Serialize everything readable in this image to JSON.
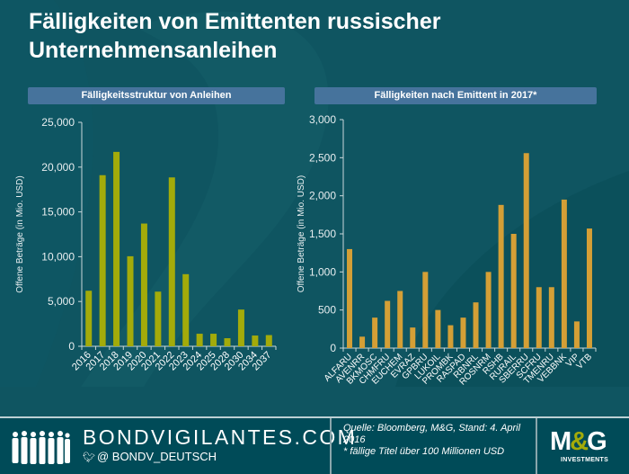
{
  "title": "Fälligkeiten von Emittenten russischer Unternehmensanleihen",
  "colors": {
    "background": "#0f5561",
    "panel_header": "#46739c",
    "left_bars": "#a3ab0a",
    "right_bars": "#d49f36",
    "axis": "#c9d8db",
    "text": "#ffffff"
  },
  "chart_data": [
    {
      "type": "bar",
      "title": "Fälligkeitsstruktur  von Anleihen",
      "xlabel": "",
      "ylabel": "Offene Beträge (in Mio. USD)",
      "ylim": [
        0,
        25000
      ],
      "yticks": [
        0,
        5000,
        10000,
        15000,
        20000,
        25000
      ],
      "ytick_labels": [
        "0",
        "5,000",
        "10,000",
        "15,000",
        "20,000",
        "25,000"
      ],
      "categories": [
        "2016",
        "2017",
        "2018",
        "2019",
        "2020",
        "2021",
        "2022",
        "2023",
        "2024",
        "2025",
        "2028",
        "2030",
        "2034",
        "2037"
      ],
      "values": [
        6200,
        19100,
        21700,
        10050,
        13700,
        6100,
        18850,
        8050,
        1400,
        1400,
        900,
        4100,
        1200,
        1250
      ],
      "grid": false,
      "legend": "none"
    },
    {
      "type": "bar",
      "title": "Fälligkeiten nach Emittent in 2017*",
      "xlabel": "",
      "ylabel": "Offene Beträge (in Mio. USD)",
      "ylim": [
        0,
        3000
      ],
      "yticks": [
        0,
        500,
        1000,
        1500,
        2000,
        2500,
        3000
      ],
      "ytick_labels": [
        "0",
        "500",
        "1,000",
        "1,500",
        "2,000",
        "2,500",
        "3,000"
      ],
      "categories": [
        "ALFARU",
        "AVENRR",
        "BKMOSC",
        "CHMFRU",
        "EUCHEM",
        "EVRAZ",
        "GPBRU",
        "LUKOIL",
        "PROMBK",
        "RASPAD",
        "RBNRL",
        "ROSNRM",
        "RSHB",
        "RURAIL",
        "SBERRU",
        "SCFRU",
        "TMENRU",
        "VEBBNK",
        "VIP",
        "VTB"
      ],
      "values": [
        1300,
        150,
        400,
        620,
        750,
        270,
        1000,
        500,
        300,
        400,
        600,
        1000,
        1880,
        1500,
        2560,
        800,
        800,
        1950,
        350,
        1570
      ],
      "grid": false,
      "legend": "none"
    }
  ],
  "footer": {
    "brand": "BONDVIGILANTES.COM",
    "twitter_icon": "twitter-bird-icon",
    "handle": "@ BONDV_DEUTSCH",
    "source_line1": "Quelle: Bloomberg, M&G, Stand: 4. April 2016",
    "source_line2": "* fällige Titel über 100 Millionen USD",
    "logo_text": "M&G",
    "logo_m": "M",
    "logo_amp": "&",
    "logo_g": "G",
    "logo_sub": "INVESTMENTS"
  }
}
